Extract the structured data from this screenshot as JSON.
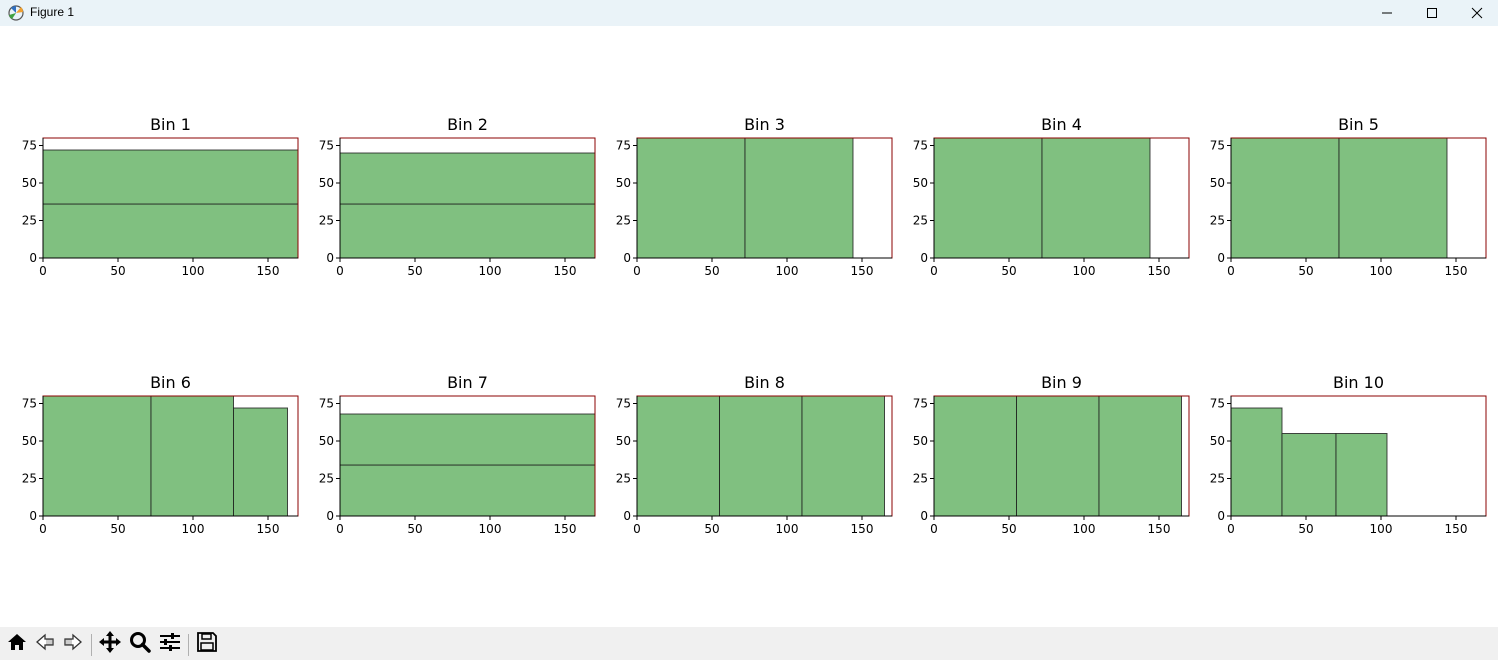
{
  "window": {
    "title": "Figure 1",
    "icon": "matplotlib-icon",
    "controls": [
      "minimize-icon",
      "maximize-icon",
      "close-icon"
    ]
  },
  "toolbar": {
    "buttons": [
      "home-icon",
      "back-arrow-icon",
      "forward-arrow-icon",
      "pan-icon",
      "zoom-icon",
      "configure-subplots-icon",
      "save-icon"
    ]
  },
  "colors": {
    "bar_fill": "#80c080",
    "bar_edge": "#1a1a1a",
    "axes_edge": "#8b0000"
  },
  "chart_data": [
    {
      "type": "bar",
      "title": "Bin 1",
      "xlim": [
        0,
        170
      ],
      "ylim": [
        0,
        80
      ],
      "xticks": [
        0,
        50,
        100,
        150
      ],
      "yticks": [
        0,
        25,
        50,
        75
      ],
      "rects": [
        {
          "x": 0,
          "w": 170,
          "y": 0,
          "h": 36
        },
        {
          "x": 0,
          "w": 170,
          "y": 36,
          "h": 36
        }
      ]
    },
    {
      "type": "bar",
      "title": "Bin 2",
      "xlim": [
        0,
        170
      ],
      "ylim": [
        0,
        80
      ],
      "xticks": [
        0,
        50,
        100,
        150
      ],
      "yticks": [
        0,
        25,
        50,
        75
      ],
      "rects": [
        {
          "x": 0,
          "w": 170,
          "y": 0,
          "h": 36
        },
        {
          "x": 0,
          "w": 170,
          "y": 36,
          "h": 34
        }
      ]
    },
    {
      "type": "bar",
      "title": "Bin 3",
      "xlim": [
        0,
        170
      ],
      "ylim": [
        0,
        80
      ],
      "xticks": [
        0,
        50,
        100,
        150
      ],
      "yticks": [
        0,
        25,
        50,
        75
      ],
      "rects": [
        {
          "x": 0,
          "w": 72,
          "y": 0,
          "h": 80
        },
        {
          "x": 72,
          "w": 72,
          "y": 0,
          "h": 80
        }
      ]
    },
    {
      "type": "bar",
      "title": "Bin 4",
      "xlim": [
        0,
        170
      ],
      "ylim": [
        0,
        80
      ],
      "xticks": [
        0,
        50,
        100,
        150
      ],
      "yticks": [
        0,
        25,
        50,
        75
      ],
      "rects": [
        {
          "x": 0,
          "w": 72,
          "y": 0,
          "h": 80
        },
        {
          "x": 72,
          "w": 72,
          "y": 0,
          "h": 80
        }
      ]
    },
    {
      "type": "bar",
      "title": "Bin 5",
      "xlim": [
        0,
        170
      ],
      "ylim": [
        0,
        80
      ],
      "xticks": [
        0,
        50,
        100,
        150
      ],
      "yticks": [
        0,
        25,
        50,
        75
      ],
      "rects": [
        {
          "x": 0,
          "w": 72,
          "y": 0,
          "h": 80
        },
        {
          "x": 72,
          "w": 72,
          "y": 0,
          "h": 80
        }
      ]
    },
    {
      "type": "bar",
      "title": "Bin 6",
      "xlim": [
        0,
        170
      ],
      "ylim": [
        0,
        80
      ],
      "xticks": [
        0,
        50,
        100,
        150
      ],
      "yticks": [
        0,
        25,
        50,
        75
      ],
      "rects": [
        {
          "x": 0,
          "w": 72,
          "y": 0,
          "h": 80
        },
        {
          "x": 72,
          "w": 55,
          "y": 0,
          "h": 80
        },
        {
          "x": 127,
          "w": 36,
          "y": 0,
          "h": 72
        }
      ]
    },
    {
      "type": "bar",
      "title": "Bin 7",
      "xlim": [
        0,
        170
      ],
      "ylim": [
        0,
        80
      ],
      "xticks": [
        0,
        50,
        100,
        150
      ],
      "yticks": [
        0,
        25,
        50,
        75
      ],
      "rects": [
        {
          "x": 0,
          "w": 170,
          "y": 0,
          "h": 34
        },
        {
          "x": 0,
          "w": 170,
          "y": 34,
          "h": 34
        }
      ]
    },
    {
      "type": "bar",
      "title": "Bin 8",
      "xlim": [
        0,
        170
      ],
      "ylim": [
        0,
        80
      ],
      "xticks": [
        0,
        50,
        100,
        150
      ],
      "yticks": [
        0,
        25,
        50,
        75
      ],
      "rects": [
        {
          "x": 0,
          "w": 55,
          "y": 0,
          "h": 80
        },
        {
          "x": 55,
          "w": 55,
          "y": 0,
          "h": 80
        },
        {
          "x": 110,
          "w": 55,
          "y": 0,
          "h": 80
        }
      ]
    },
    {
      "type": "bar",
      "title": "Bin 9",
      "xlim": [
        0,
        170
      ],
      "ylim": [
        0,
        80
      ],
      "xticks": [
        0,
        50,
        100,
        150
      ],
      "yticks": [
        0,
        25,
        50,
        75
      ],
      "rects": [
        {
          "x": 0,
          "w": 55,
          "y": 0,
          "h": 80
        },
        {
          "x": 55,
          "w": 55,
          "y": 0,
          "h": 80
        },
        {
          "x": 110,
          "w": 55,
          "y": 0,
          "h": 80
        }
      ]
    },
    {
      "type": "bar",
      "title": "Bin 10",
      "xlim": [
        0,
        170
      ],
      "ylim": [
        0,
        80
      ],
      "xticks": [
        0,
        50,
        100,
        150
      ],
      "yticks": [
        0,
        25,
        50,
        75
      ],
      "rects": [
        {
          "x": 0,
          "w": 34,
          "y": 0,
          "h": 72
        },
        {
          "x": 34,
          "w": 36,
          "y": 0,
          "h": 55
        },
        {
          "x": 70,
          "w": 34,
          "y": 0,
          "h": 55
        }
      ]
    }
  ]
}
